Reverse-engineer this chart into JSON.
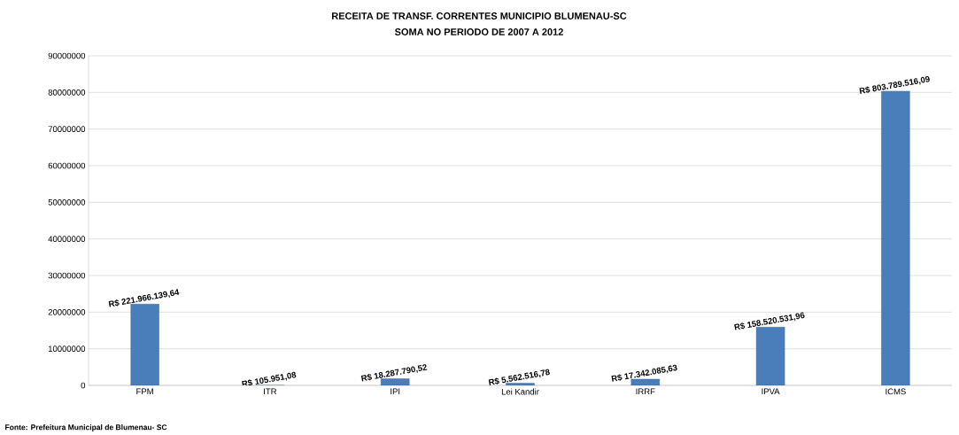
{
  "chart_data": {
    "type": "bar",
    "title": "RECEITA DE TRANSF. CORRENTES MUNICIPIO BLUMENAU-SC",
    "subtitle": "SOMA NO PERIODO DE 2007 A 2012",
    "categories": [
      "FPM",
      "ITR",
      "IPI",
      "Lei Kandir",
      "IRRF",
      "IPVA",
      "ICMS"
    ],
    "values": [
      22200000,
      0,
      1800000,
      600000,
      1700000,
      15900000,
      80400000
    ],
    "value_labels": [
      "R$ 221.966.139,64",
      "R$ 105.951,08",
      "R$ 18.287.790,52",
      "R$ 5.562.516,78",
      "R$ 17.342.085,63",
      "R$ 158.520.531,96",
      "R$ 803.789.516,09"
    ],
    "color": "#4a7ebb",
    "ylim": [
      0,
      90000000
    ],
    "yticks": [
      0,
      10000000,
      20000000,
      30000000,
      40000000,
      50000000,
      60000000,
      70000000,
      80000000,
      90000000
    ],
    "grid": "y",
    "annotations": [
      "Fonte: Prefeitura Municipal  de Blumenau- SC"
    ]
  }
}
